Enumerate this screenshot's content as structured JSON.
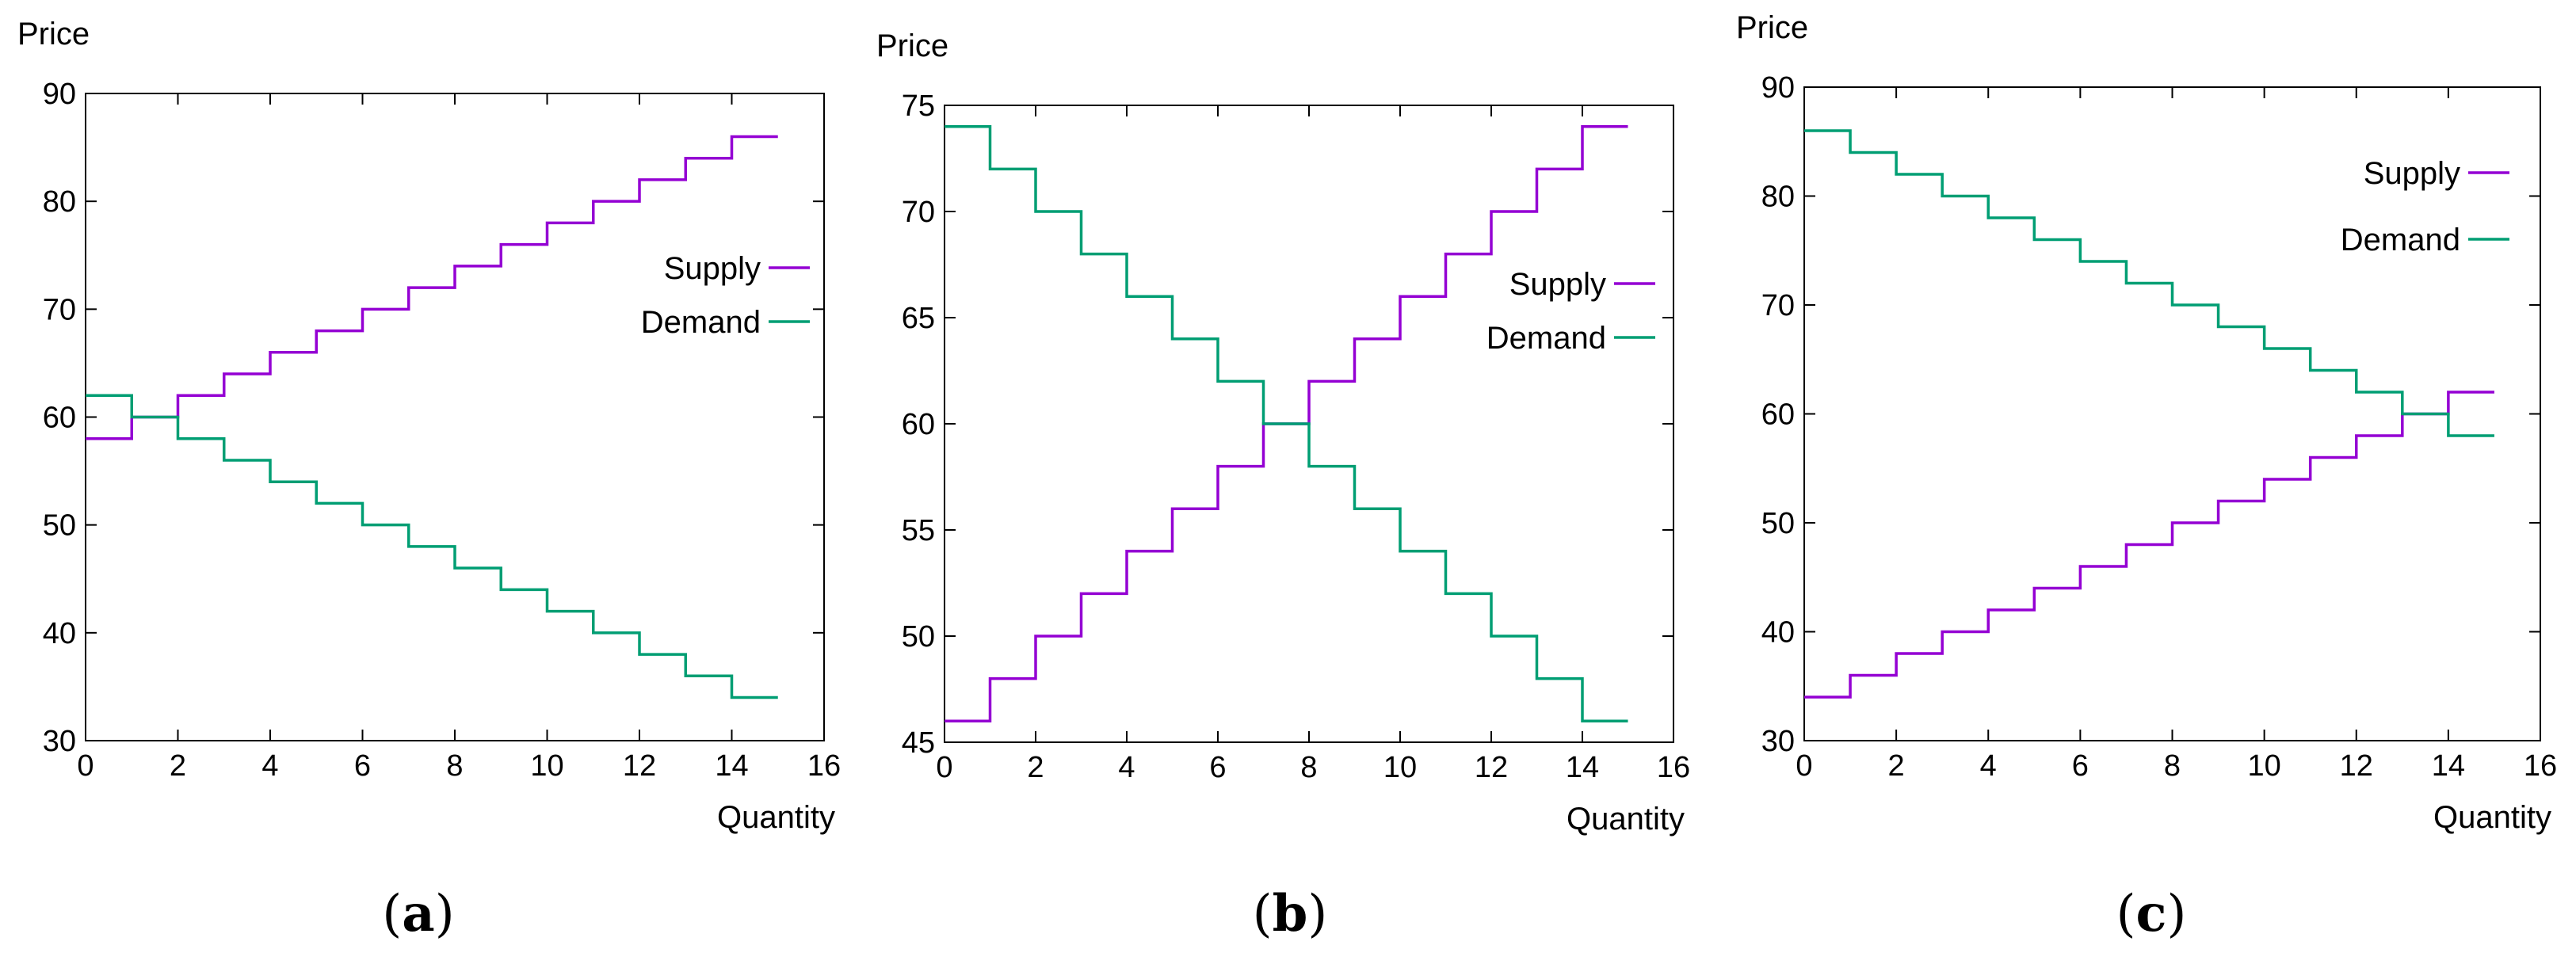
{
  "chart_data": [
    {
      "id": "a",
      "type": "line",
      "step": true,
      "caption": "(a)",
      "caption_letter": "a",
      "xlabel": "Quantity",
      "ylabel": "Price",
      "xlim": [
        0,
        16
      ],
      "ylim": [
        30,
        90
      ],
      "xticks": [
        0,
        2,
        4,
        6,
        8,
        10,
        12,
        14,
        16
      ],
      "yticks": [
        30,
        40,
        50,
        60,
        70,
        80,
        90
      ],
      "grid": false,
      "legend_position": "right-middle",
      "series": [
        {
          "name": "Supply",
          "color": "#9400d3",
          "x": [
            0,
            1,
            2,
            3,
            4,
            5,
            6,
            7,
            8,
            9,
            10,
            11,
            12,
            13,
            14,
            15
          ],
          "values": [
            58,
            60,
            62,
            64,
            66,
            68,
            70,
            72,
            74,
            76,
            78,
            80,
            82,
            84,
            86,
            86
          ]
        },
        {
          "name": "Demand",
          "color": "#009e73",
          "x": [
            0,
            1,
            2,
            3,
            4,
            5,
            6,
            7,
            8,
            9,
            10,
            11,
            12,
            13,
            14,
            15
          ],
          "values": [
            62,
            60,
            58,
            56,
            54,
            52,
            50,
            48,
            46,
            44,
            42,
            40,
            38,
            36,
            34,
            34
          ]
        }
      ]
    },
    {
      "id": "b",
      "type": "line",
      "step": true,
      "caption": "(b)",
      "caption_letter": "b",
      "xlabel": "Quantity",
      "ylabel": "Price",
      "xlim": [
        0,
        16
      ],
      "ylim": [
        45,
        75
      ],
      "xticks": [
        0,
        2,
        4,
        6,
        8,
        10,
        12,
        14,
        16
      ],
      "yticks": [
        45,
        50,
        55,
        60,
        65,
        70,
        75
      ],
      "grid": false,
      "legend_position": "right-middle",
      "series": [
        {
          "name": "Supply",
          "color": "#9400d3",
          "x": [
            0,
            1,
            2,
            3,
            4,
            5,
            6,
            7,
            8,
            9,
            10,
            11,
            12,
            13,
            14,
            15
          ],
          "values": [
            46,
            48,
            50,
            52,
            54,
            56,
            58,
            60,
            62,
            64,
            66,
            68,
            70,
            72,
            74,
            74
          ]
        },
        {
          "name": "Demand",
          "color": "#009e73",
          "x": [
            0,
            1,
            2,
            3,
            4,
            5,
            6,
            7,
            8,
            9,
            10,
            11,
            12,
            13,
            14,
            15
          ],
          "values": [
            74,
            72,
            70,
            68,
            66,
            64,
            62,
            60,
            58,
            56,
            54,
            52,
            50,
            48,
            46,
            46
          ]
        }
      ]
    },
    {
      "id": "c",
      "type": "line",
      "step": true,
      "caption": "(c)",
      "caption_letter": "c",
      "xlabel": "Quantity",
      "ylabel": "Price",
      "xlim": [
        0,
        16
      ],
      "ylim": [
        30,
        90
      ],
      "xticks": [
        0,
        2,
        4,
        6,
        8,
        10,
        12,
        14,
        16
      ],
      "yticks": [
        30,
        40,
        50,
        60,
        70,
        80,
        90
      ],
      "grid": false,
      "legend_position": "top-right",
      "series": [
        {
          "name": "Supply",
          "color": "#9400d3",
          "x": [
            0,
            1,
            2,
            3,
            4,
            5,
            6,
            7,
            8,
            9,
            10,
            11,
            12,
            13,
            14,
            15
          ],
          "values": [
            34,
            36,
            38,
            40,
            42,
            44,
            46,
            48,
            50,
            52,
            54,
            56,
            58,
            60,
            62,
            62
          ]
        },
        {
          "name": "Demand",
          "color": "#009e73",
          "x": [
            0,
            1,
            2,
            3,
            4,
            5,
            6,
            7,
            8,
            9,
            10,
            11,
            12,
            13,
            14,
            15
          ],
          "values": [
            86,
            84,
            82,
            80,
            78,
            76,
            74,
            72,
            70,
            68,
            66,
            64,
            62,
            60,
            58,
            58
          ]
        }
      ]
    }
  ]
}
